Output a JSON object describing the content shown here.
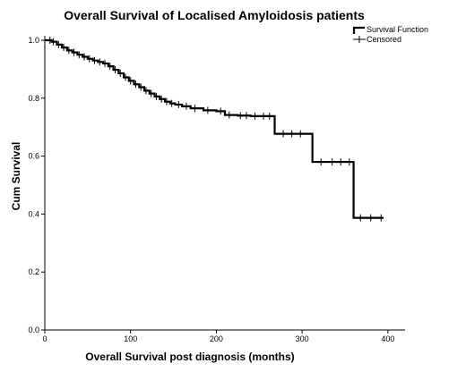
{
  "chart_data": {
    "type": "line",
    "title": "Overall Survival of Localised Amyloidosis patients",
    "xlabel": "Overall Survival post diagnosis (months)",
    "ylabel": "Cum Survival",
    "xlim": [
      0,
      420
    ],
    "ylim": [
      0.0,
      1.0
    ],
    "xticks": [
      "0",
      "100",
      "200",
      "300",
      "400"
    ],
    "yticks": [
      "0.0",
      "0.2",
      "0.4",
      "0.6",
      "0.8",
      "1.0"
    ],
    "grid": false,
    "legend_position": "top-right",
    "legend": [
      "Survival Function",
      "Censored"
    ],
    "series": [
      {
        "name": "Survival Function",
        "step": true,
        "x": [
          0,
          8,
          14,
          20,
          26,
          32,
          38,
          44,
          50,
          56,
          62,
          68,
          74,
          80,
          86,
          92,
          98,
          104,
          110,
          116,
          122,
          128,
          134,
          140,
          146,
          152,
          160,
          170,
          185,
          200,
          210,
          225,
          240,
          255,
          268,
          280,
          300,
          312,
          330,
          350,
          360,
          375,
          395
        ],
        "y": [
          1.0,
          0.995,
          0.985,
          0.975,
          0.965,
          0.958,
          0.95,
          0.943,
          0.936,
          0.93,
          0.925,
          0.92,
          0.91,
          0.898,
          0.886,
          0.872,
          0.86,
          0.848,
          0.838,
          0.826,
          0.816,
          0.806,
          0.797,
          0.788,
          0.782,
          0.778,
          0.772,
          0.765,
          0.758,
          0.755,
          0.742,
          0.74,
          0.738,
          0.738,
          0.677,
          0.677,
          0.677,
          0.58,
          0.58,
          0.58,
          0.387,
          0.387,
          0.387
        ]
      },
      {
        "name": "Censored",
        "x": [
          6,
          10,
          16,
          22,
          28,
          34,
          40,
          46,
          52,
          58,
          64,
          70,
          76,
          82,
          88,
          94,
          100,
          106,
          112,
          118,
          124,
          130,
          136,
          142,
          148,
          156,
          165,
          175,
          190,
          205,
          215,
          228,
          235,
          245,
          255,
          262,
          278,
          288,
          298,
          322,
          335,
          345,
          355,
          368,
          380,
          392
        ],
        "y": [
          1.0,
          0.995,
          0.985,
          0.975,
          0.965,
          0.958,
          0.95,
          0.943,
          0.936,
          0.93,
          0.925,
          0.92,
          0.91,
          0.898,
          0.886,
          0.872,
          0.86,
          0.848,
          0.838,
          0.826,
          0.816,
          0.806,
          0.797,
          0.788,
          0.782,
          0.778,
          0.772,
          0.765,
          0.758,
          0.755,
          0.742,
          0.74,
          0.74,
          0.738,
          0.738,
          0.738,
          0.677,
          0.677,
          0.677,
          0.58,
          0.58,
          0.58,
          0.58,
          0.387,
          0.387,
          0.387
        ]
      }
    ]
  }
}
